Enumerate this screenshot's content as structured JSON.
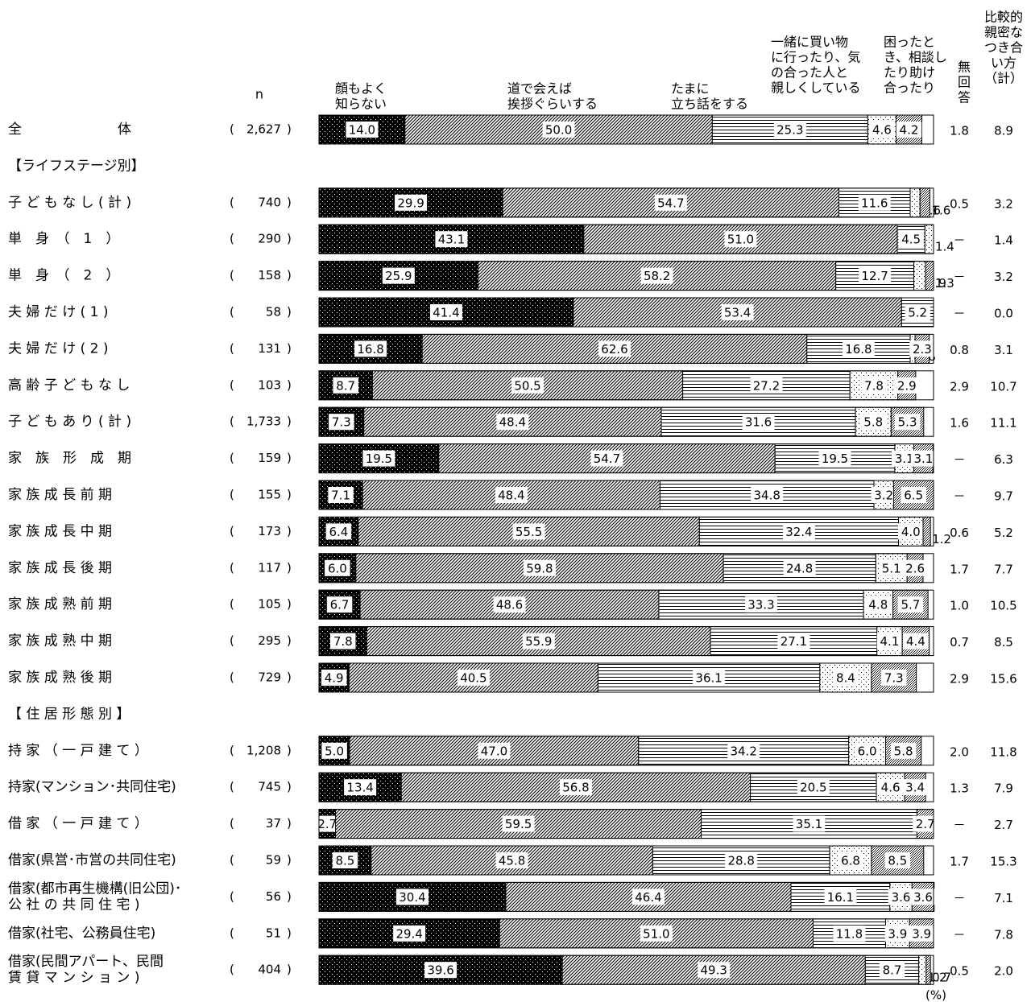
{
  "chart_data": {
    "type": "bar",
    "stacked": true,
    "orientation": "horizontal",
    "unit": "(%)",
    "n_header": "n",
    "series": [
      {
        "name": "顔もよく\n知らない",
        "pattern": "dots-dark"
      },
      {
        "name": "道で会えば\n挨拶ぐらいする",
        "pattern": "diagonal"
      },
      {
        "name": "たまに\n立ち話をする",
        "pattern": "horizontal"
      },
      {
        "name": "一緒に買い物\nに行ったり、気\nの合った人と\n親しくしている",
        "pattern": "dots-light"
      },
      {
        "name": "困ったと\nき、相談し\nたり助け\n合ったり",
        "pattern": "dots-dense"
      },
      {
        "name": "無\n回\n答",
        "pattern": "white"
      }
    ],
    "extra_column": "比較的\n親密な\nつき合\nい方\n（計）",
    "sections": [
      "【ライフステージ別】",
      "【 住 居 形 態 別 】"
    ],
    "rows": [
      {
        "label": "全　　　　　　　体",
        "n": "2,627",
        "values": [
          14.0,
          50.0,
          25.3,
          4.6,
          4.2,
          1.8
        ],
        "labels": [
          "14.0",
          "50.0",
          "25.3",
          "4.6",
          "4.2",
          "1.8"
        ],
        "total": "8.9"
      },
      {
        "section": 0
      },
      {
        "label": "子 ど も な し ( 計 )",
        "n": "740",
        "values": [
          29.9,
          54.7,
          11.6,
          1.6,
          1.6,
          0.5
        ],
        "labels": [
          "29.9",
          "54.7",
          "11.6",
          "1.6",
          "1.6",
          "0.5"
        ],
        "total": "3.2"
      },
      {
        "label": "単　身　（　1　）",
        "n": "290",
        "values": [
          43.1,
          51.0,
          4.5,
          1.4,
          0,
          0
        ],
        "labels": [
          "43.1",
          "51.0",
          "4.5",
          "1.4",
          "",
          "－"
        ],
        "total": "1.4"
      },
      {
        "label": "単　身　（　2　）",
        "n": "158",
        "values": [
          25.9,
          58.2,
          12.7,
          1.9,
          1.3,
          0
        ],
        "labels": [
          "25.9",
          "58.2",
          "12.7",
          "1.9",
          "1.3",
          "－"
        ],
        "total": "3.2"
      },
      {
        "label": "夫 婦 だ け ( 1 )",
        "n": "58",
        "values": [
          41.4,
          53.4,
          5.2,
          0,
          0,
          0
        ],
        "labels": [
          "41.4",
          "53.4",
          "5.2",
          "",
          "",
          "－"
        ],
        "total": "0.0"
      },
      {
        "label": "夫 婦 だ け ( 2 )",
        "n": "131",
        "values": [
          16.8,
          62.6,
          16.8,
          0.8,
          2.3,
          0.8
        ],
        "labels": [
          "16.8",
          "62.6",
          "16.8",
          "0.8",
          "2.3",
          "0.8"
        ],
        "total": "3.1"
      },
      {
        "label": "高 齢 子 ど も な し",
        "n": "103",
        "values": [
          8.7,
          50.5,
          27.2,
          7.8,
          2.9,
          2.9
        ],
        "labels": [
          "8.7",
          "50.5",
          "27.2",
          "7.8",
          "2.9",
          "2.9"
        ],
        "total": "10.7"
      },
      {
        "label": "子 ど も あ り ( 計 )",
        "n": "1,733",
        "values": [
          7.3,
          48.4,
          31.6,
          5.8,
          5.3,
          1.6
        ],
        "labels": [
          "7.3",
          "48.4",
          "31.6",
          "5.8",
          "5.3",
          "1.6"
        ],
        "total": "11.1"
      },
      {
        "label": "家　族　形　成　期",
        "n": "159",
        "values": [
          19.5,
          54.7,
          19.5,
          3.1,
          3.1,
          0
        ],
        "labels": [
          "19.5",
          "54.7",
          "19.5",
          "3.1",
          "3.1",
          "－"
        ],
        "total": "6.3"
      },
      {
        "label": "家 族 成 長 前 期",
        "n": "155",
        "values": [
          7.1,
          48.4,
          34.8,
          3.2,
          6.5,
          0
        ],
        "labels": [
          "7.1",
          "48.4",
          "34.8",
          "3.2",
          "6.5",
          "－"
        ],
        "total": "9.7"
      },
      {
        "label": "家 族 成 長 中 期",
        "n": "173",
        "values": [
          6.4,
          55.5,
          32.4,
          4.0,
          1.2,
          0.6
        ],
        "labels": [
          "6.4",
          "55.5",
          "32.4",
          "4.0",
          "1.2",
          "0.6"
        ],
        "total": "5.2"
      },
      {
        "label": "家 族 成 長 後 期",
        "n": "117",
        "values": [
          6.0,
          59.8,
          24.8,
          5.1,
          2.6,
          1.7
        ],
        "labels": [
          "6.0",
          "59.8",
          "24.8",
          "5.1",
          "2.6",
          "1.7"
        ],
        "total": "7.7"
      },
      {
        "label": "家 族 成 熟 前 期",
        "n": "105",
        "values": [
          6.7,
          48.6,
          33.3,
          4.8,
          5.7,
          1.0
        ],
        "labels": [
          "6.7",
          "48.6",
          "33.3",
          "4.8",
          "5.7",
          "1.0"
        ],
        "total": "10.5"
      },
      {
        "label": "家 族 成 熟 中 期",
        "n": "295",
        "values": [
          7.8,
          55.9,
          27.1,
          4.1,
          4.4,
          0.7
        ],
        "labels": [
          "7.8",
          "55.9",
          "27.1",
          "4.1",
          "4.4",
          "0.7"
        ],
        "total": "8.5"
      },
      {
        "label": "家 族 成 熟 後 期",
        "n": "729",
        "values": [
          4.9,
          40.5,
          36.1,
          8.4,
          7.3,
          2.9
        ],
        "labels": [
          "4.9",
          "40.5",
          "36.1",
          "8.4",
          "7.3",
          "2.9"
        ],
        "total": "15.6"
      },
      {
        "section": 1
      },
      {
        "label": "持 家 （ 一 戸 建 て ）",
        "n": "1,208",
        "values": [
          5.0,
          47.0,
          34.2,
          6.0,
          5.8,
          2.0
        ],
        "labels": [
          "5.0",
          "47.0",
          "34.2",
          "6.0",
          "5.8",
          "2.0"
        ],
        "total": "11.8"
      },
      {
        "label": "持家(マンション･共同住宅)",
        "n": "745",
        "values": [
          13.4,
          56.8,
          20.5,
          4.6,
          3.4,
          1.3
        ],
        "labels": [
          "13.4",
          "56.8",
          "20.5",
          "4.6",
          "3.4",
          "1.3"
        ],
        "total": "7.9"
      },
      {
        "label": "借 家 （ 一 戸 建 て ）",
        "n": "37",
        "values": [
          2.7,
          59.5,
          35.1,
          0,
          2.7,
          0
        ],
        "labels": [
          "2.7",
          "59.5",
          "35.1",
          "",
          "2.7",
          "－"
        ],
        "total": "2.7"
      },
      {
        "label": "借家(県営･市営の共同住宅)",
        "n": "59",
        "values": [
          8.5,
          45.8,
          28.8,
          6.8,
          8.5,
          1.7
        ],
        "labels": [
          "8.5",
          "45.8",
          "28.8",
          "6.8",
          "8.5",
          "1.7"
        ],
        "total": "15.3"
      },
      {
        "label": "借家(都市再生機構(旧公団)･\n公 社 の 共 同 住 宅 )",
        "n": "56",
        "values": [
          30.4,
          46.4,
          16.1,
          3.6,
          3.6,
          0
        ],
        "labels": [
          "30.4",
          "46.4",
          "16.1",
          "3.6",
          "3.6",
          "－"
        ],
        "total": "7.1"
      },
      {
        "label": "借家(社宅、公務員住宅)",
        "n": "51",
        "values": [
          29.4,
          51.0,
          11.8,
          3.9,
          3.9,
          0
        ],
        "labels": [
          "29.4",
          "51.0",
          "11.8",
          "3.9",
          "3.9",
          "－"
        ],
        "total": "7.8"
      },
      {
        "label": "借家(民間アパート、民間\n賃 貸 マ ン シ ョ ン )",
        "n": "404",
        "values": [
          39.6,
          49.3,
          8.7,
          1.2,
          0.7,
          0.5
        ],
        "labels": [
          "39.6",
          "49.3",
          "8.7",
          "1.2",
          "0.7",
          "0.5"
        ],
        "total": "2.0"
      }
    ]
  }
}
